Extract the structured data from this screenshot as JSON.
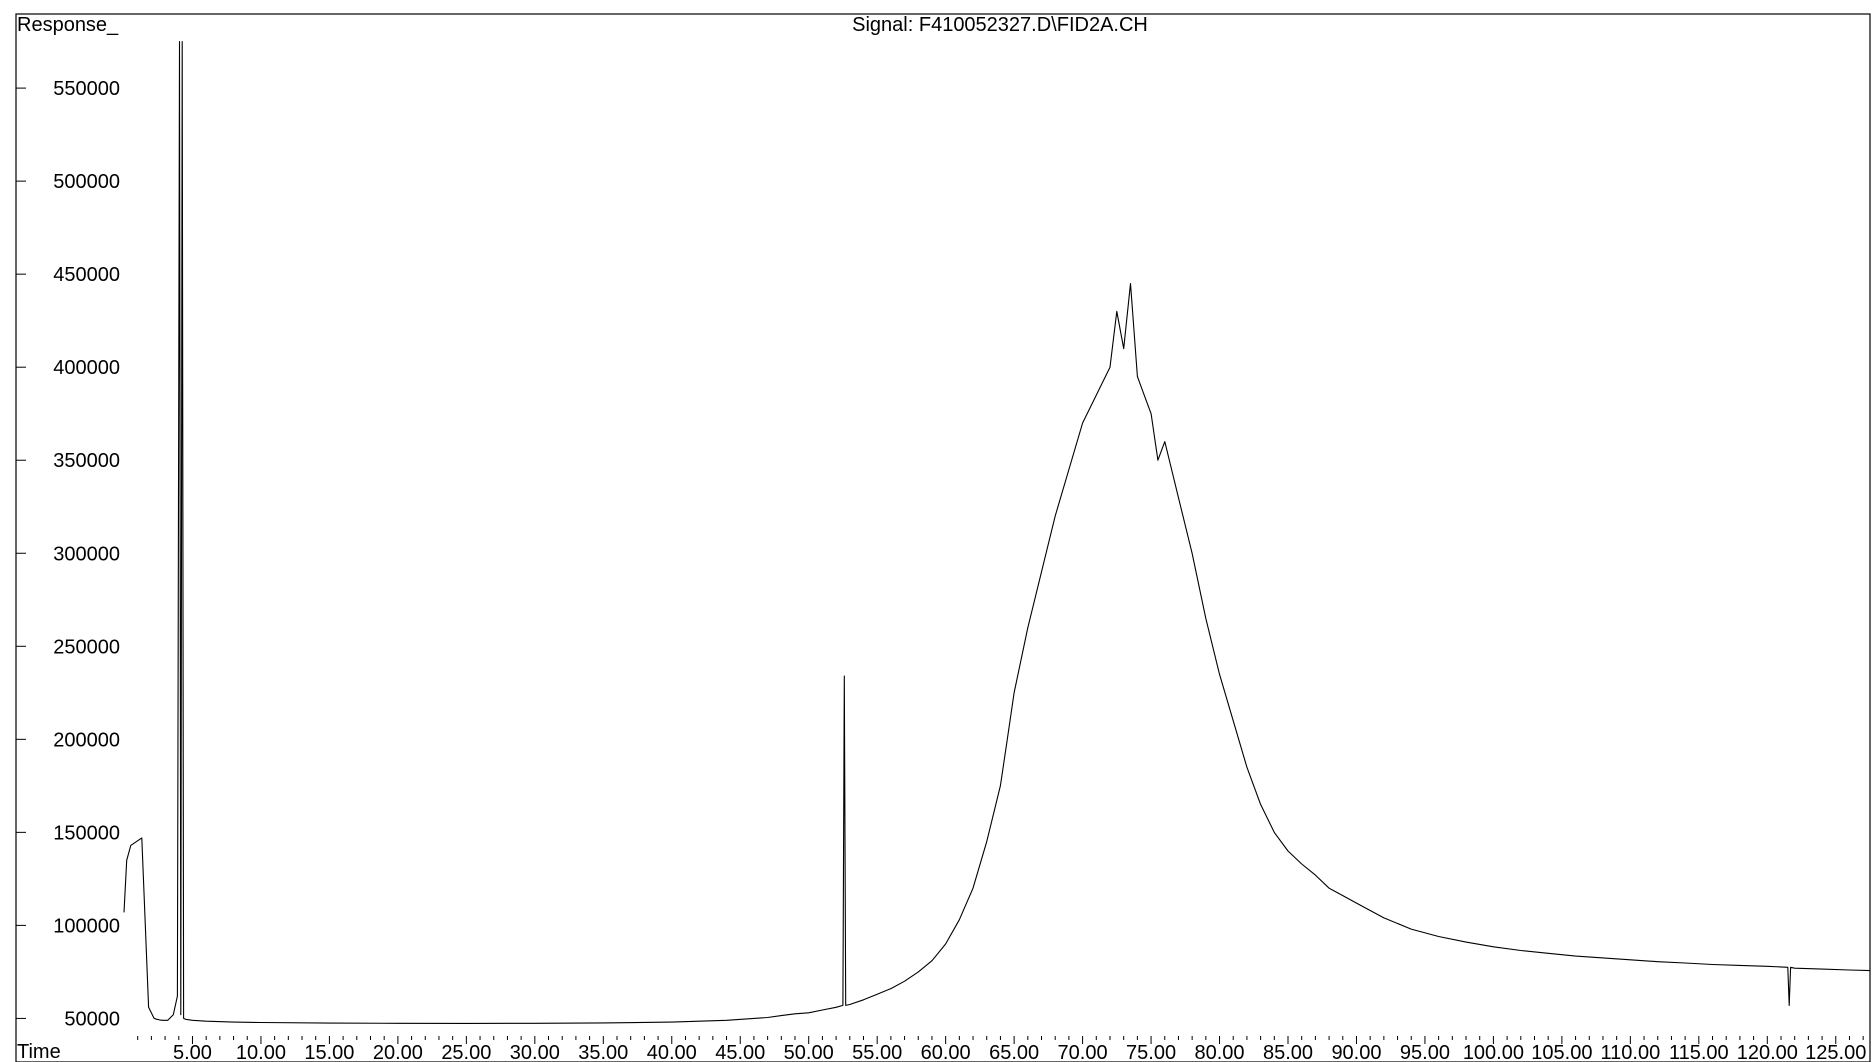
{
  "chart_data": {
    "type": "line",
    "title": "Signal: F410052327.D\\FID2A.CH",
    "ylabel": "Response_",
    "xlabel": "Time",
    "xlim": [
      0,
      127.5
    ],
    "ylim": [
      47000,
      578000
    ],
    "x_ticks": [
      5,
      10,
      15,
      20,
      25,
      30,
      35,
      40,
      45,
      50,
      55,
      60,
      65,
      70,
      75,
      80,
      85,
      90,
      95,
      100,
      105,
      110,
      115,
      120,
      125
    ],
    "x_tick_labels": [
      "5.00",
      "10.00",
      "15.00",
      "20.00",
      "25.00",
      "30.00",
      "35.00",
      "40.00",
      "45.00",
      "50.00",
      "55.00",
      "60.00",
      "65.00",
      "70.00",
      "75.00",
      "80.00",
      "85.00",
      "90.00",
      "95.00",
      "100.00",
      "105.00",
      "110.00",
      "115.00",
      "120.00",
      "125.00"
    ],
    "y_ticks": [
      50000,
      100000,
      150000,
      200000,
      250000,
      300000,
      350000,
      400000,
      450000,
      500000,
      550000
    ],
    "y_tick_labels": [
      "50000",
      "100000",
      "150000",
      "200000",
      "250000",
      "300000",
      "350000",
      "400000",
      "450000",
      "500000",
      "550000"
    ],
    "grid": false,
    "line_color": "#000000",
    "series": [
      {
        "x": [
          0.0,
          0.2,
          0.5,
          0.9,
          1.3,
          1.8,
          2.2,
          2.4,
          2.6,
          2.8,
          3.2,
          3.6,
          3.9,
          4.05,
          4.15,
          4.25,
          4.35,
          4.5,
          5.0,
          6.0,
          8.0,
          10.0,
          15.0,
          20.0,
          25.0,
          30.0,
          35.0,
          40.0,
          42.0,
          44.0,
          46.0,
          47.0,
          48.0,
          49.0,
          50.0,
          51.0,
          52.0,
          52.5,
          52.6,
          52.7,
          53.0,
          54.0,
          55.0,
          56.0,
          57.0,
          58.0,
          59.0,
          60.0,
          61.0,
          62.0,
          63.0,
          64.0,
          64.5,
          65.0,
          66.0,
          67.0,
          68.0,
          69.0,
          70.0,
          71.0,
          72.0,
          72.5,
          73.0,
          73.5,
          74.0,
          74.5,
          75.0,
          75.5,
          76.0,
          77.0,
          78.0,
          79.0,
          80.0,
          81.0,
          82.0,
          83.0,
          84.0,
          85.0,
          86.0,
          87.0,
          88.0,
          89.0,
          90.0,
          92.0,
          94.0,
          96.0,
          98.0,
          100.0,
          102.0,
          104.0,
          106.0,
          108.0,
          110.0,
          112.0,
          114.0,
          116.0,
          118.0,
          120.0,
          121.5,
          121.6,
          121.7,
          122.0,
          124.0,
          126.0,
          127.5
        ],
        "y": [
          107000,
          135000,
          143000,
          145000,
          147000,
          56000,
          50000,
          49500,
          49200,
          49000,
          49000,
          52000,
          62000,
          575000,
          52000,
          575000,
          50000,
          49500,
          49000,
          48500,
          48000,
          47800,
          47500,
          47400,
          47300,
          47400,
          47600,
          48000,
          48500,
          49000,
          50000,
          50500,
          51500,
          52500,
          53000,
          54500,
          56000,
          57000,
          234000,
          57000,
          57500,
          60000,
          63000,
          66000,
          70000,
          75000,
          81000,
          90000,
          103000,
          120000,
          145000,
          175000,
          200000,
          225000,
          260000,
          290000,
          320000,
          345000,
          370000,
          385000,
          400000,
          430000,
          410000,
          445000,
          395000,
          385000,
          375000,
          350000,
          360000,
          330000,
          300000,
          265000,
          235000,
          210000,
          185000,
          165000,
          150000,
          140000,
          133000,
          127000,
          120000,
          116000,
          112000,
          104000,
          98000,
          94000,
          91000,
          88500,
          86500,
          85000,
          83500,
          82500,
          81500,
          80500,
          79800,
          79000,
          78500,
          78000,
          77500,
          57000,
          77500,
          77000,
          76500,
          76000,
          75700
        ]
      }
    ]
  }
}
